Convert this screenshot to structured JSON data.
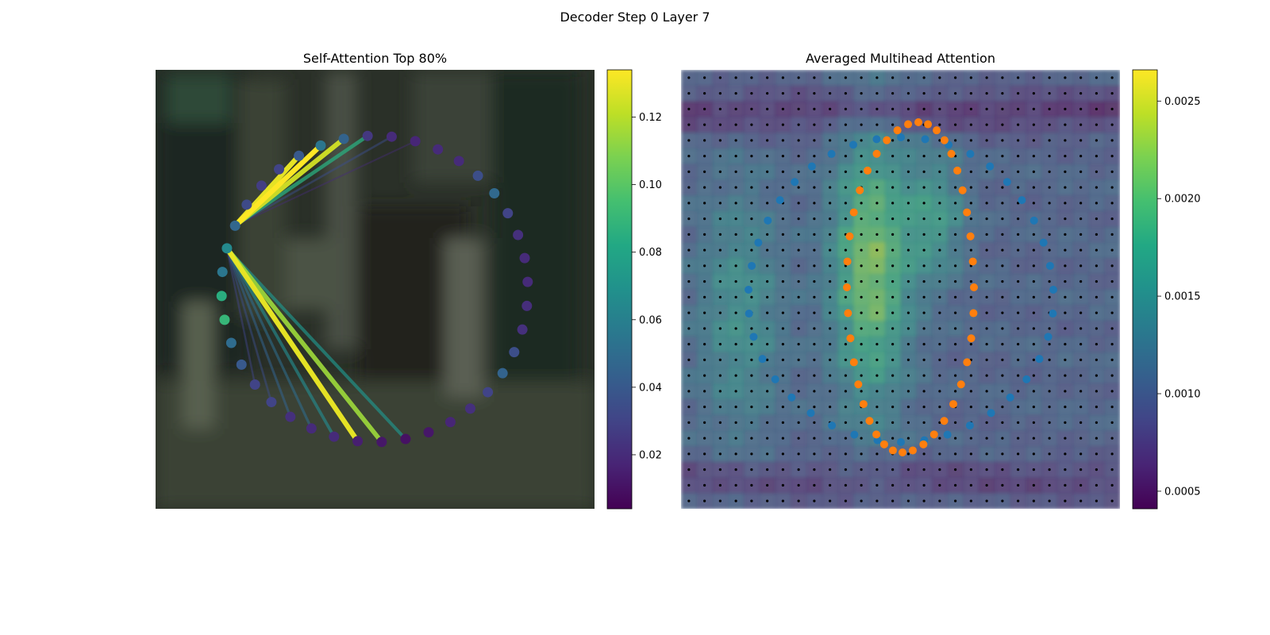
{
  "figure": {
    "title": "Decoder Step 0 Layer 7"
  },
  "chart_data": [
    {
      "type": "scatter",
      "title": "Self-Attention Top 80%",
      "description_nodes": "40 contour points placed on a circle over a blurred background image, colored by attention weight",
      "node_values": [
        0.047,
        0.033,
        0.027,
        0.03,
        0.04,
        0.055,
        0.045,
        0.025,
        0.02,
        0.018,
        0.02,
        0.02,
        0.035,
        0.048,
        0.03,
        0.022,
        0.02,
        0.02,
        0.021,
        0.022,
        0.035,
        0.045,
        0.03,
        0.022,
        0.018,
        0.012,
        0.01,
        0.012,
        0.015,
        0.02,
        0.02,
        0.022,
        0.03,
        0.03,
        0.04,
        0.05,
        0.09,
        0.085,
        0.055,
        0.065
      ],
      "edges": [
        {
          "from": 0,
          "to": 5,
          "weight": 0.135
        },
        {
          "from": 0,
          "to": 6,
          "weight": 0.125
        },
        {
          "from": 0,
          "to": 7,
          "weight": 0.085
        },
        {
          "from": 0,
          "to": 4,
          "weight": 0.13
        },
        {
          "from": 0,
          "to": 8,
          "weight": 0.035
        },
        {
          "from": 0,
          "to": 9,
          "weight": 0.02
        },
        {
          "from": 39,
          "to": 28,
          "weight": 0.13
        },
        {
          "from": 39,
          "to": 27,
          "weight": 0.115
        },
        {
          "from": 39,
          "to": 26,
          "weight": 0.07
        },
        {
          "from": 39,
          "to": 29,
          "weight": 0.065
        },
        {
          "from": 39,
          "to": 30,
          "weight": 0.05
        },
        {
          "from": 39,
          "to": 31,
          "weight": 0.045
        },
        {
          "from": 39,
          "to": 32,
          "weight": 0.035
        },
        {
          "from": 39,
          "to": 33,
          "weight": 0.03
        }
      ],
      "colorbar": {
        "colormap": "viridis",
        "min": 0.004,
        "max": 0.134,
        "ticks": [
          "0.02",
          "0.04",
          "0.06",
          "0.08",
          "0.10",
          "0.12"
        ],
        "tick_values": [
          0.02,
          0.04,
          0.06,
          0.08,
          0.1,
          0.12
        ]
      }
    },
    {
      "type": "heatmap",
      "title": "Averaged Multihead Attention",
      "grid_size": 28,
      "colorbar": {
        "colormap": "viridis",
        "min": 0.00041,
        "max": 0.00266,
        "ticks": [
          "0.0005",
          "0.0010",
          "0.0015",
          "0.0020",
          "0.0025"
        ],
        "tick_values": [
          0.0005,
          0.001,
          0.0015,
          0.002,
          0.0025
        ]
      },
      "series": [
        {
          "name": "",
          "color": "#1f77b4",
          "shape": "outer contour (40 points)"
        },
        {
          "name": "",
          "color": "#ff7f0e",
          "shape": "inner contour (40 points)"
        }
      ]
    }
  ],
  "colors": {
    "series_blue": "#1f77b4",
    "series_orange": "#ff7f0e",
    "grid_dots": "#000000"
  }
}
